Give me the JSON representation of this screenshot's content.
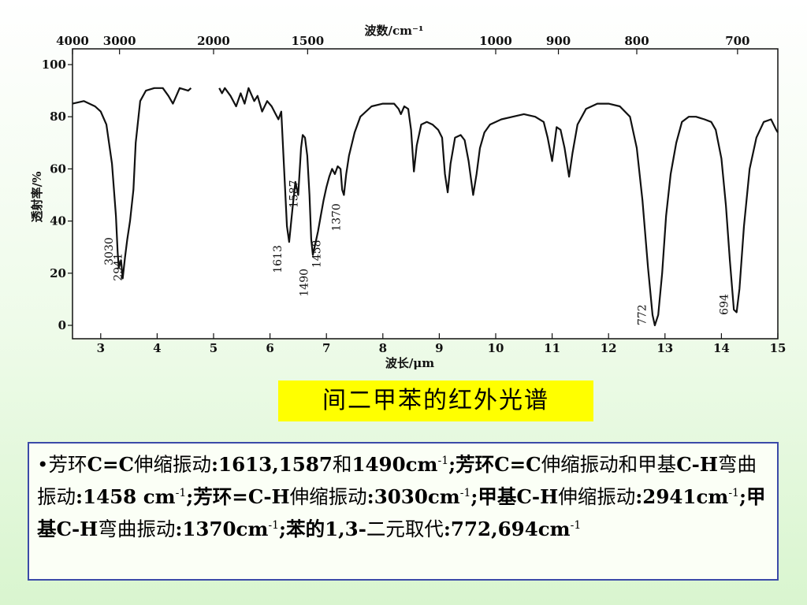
{
  "chart_data": {
    "type": "line",
    "title": "",
    "top_axis_label": "波数/cm⁻¹",
    "top_ticks": [
      4000,
      3000,
      2000,
      1500,
      1000,
      900,
      800,
      700
    ],
    "xlabel": "波长/μm",
    "x_ticks": [
      3,
      4,
      5,
      6,
      7,
      8,
      9,
      10,
      11,
      12,
      13,
      14,
      15
    ],
    "xlim": [
      2.5,
      15
    ],
    "ylabel": "透射率/%",
    "y_ticks": [
      0,
      20,
      40,
      60,
      80,
      100
    ],
    "ylim": [
      0,
      100
    ],
    "series": [
      {
        "segments": [
          [
            [
              2.5,
              85
            ],
            [
              2.7,
              86
            ],
            [
              2.9,
              84
            ],
            [
              3.0,
              82
            ],
            [
              3.1,
              77
            ],
            [
              3.2,
              62
            ],
            [
              3.27,
              42
            ],
            [
              3.3,
              28
            ],
            [
              3.32,
              22
            ],
            [
              3.36,
              25
            ],
            [
              3.39,
              18
            ],
            [
              3.43,
              26
            ],
            [
              3.47,
              33
            ],
            [
              3.52,
              40
            ],
            [
              3.58,
              52
            ],
            [
              3.62,
              70
            ],
            [
              3.7,
              86
            ],
            [
              3.8,
              90
            ],
            [
              3.95,
              91
            ],
            [
              4.1,
              91
            ],
            [
              4.2,
              88
            ],
            [
              4.28,
              85
            ],
            [
              4.34,
              88
            ],
            [
              4.4,
              91
            ],
            [
              4.55,
              90
            ],
            [
              4.6,
              91
            ]
          ],
          [
            [
              5.1,
              91
            ],
            [
              5.15,
              89
            ],
            [
              5.2,
              91
            ],
            [
              5.3,
              88
            ],
            [
              5.4,
              84
            ],
            [
              5.48,
              89
            ],
            [
              5.55,
              85
            ],
            [
              5.62,
              91
            ],
            [
              5.72,
              86
            ],
            [
              5.78,
              88
            ],
            [
              5.86,
              82
            ],
            [
              5.95,
              86
            ],
            [
              6.03,
              84
            ],
            [
              6.1,
              81
            ],
            [
              6.15,
              79
            ],
            [
              6.2,
              82
            ],
            [
              6.25,
              60
            ],
            [
              6.3,
              38
            ],
            [
              6.34,
              32
            ],
            [
              6.4,
              45
            ],
            [
              6.45,
              55
            ],
            [
              6.5,
              50
            ],
            [
              6.55,
              68
            ],
            [
              6.58,
              73
            ],
            [
              6.62,
              72
            ],
            [
              6.66,
              65
            ],
            [
              6.7,
              50
            ],
            [
              6.73,
              33
            ],
            [
              6.76,
              27
            ],
            [
              6.8,
              31
            ],
            [
              6.85,
              36
            ],
            [
              6.9,
              42
            ],
            [
              6.95,
              48
            ],
            [
              7.0,
              53
            ],
            [
              7.05,
              57
            ],
            [
              7.1,
              60
            ],
            [
              7.15,
              58
            ],
            [
              7.2,
              61
            ],
            [
              7.25,
              60
            ],
            [
              7.28,
              52
            ],
            [
              7.31,
              50
            ],
            [
              7.35,
              58
            ],
            [
              7.4,
              65
            ],
            [
              7.5,
              74
            ],
            [
              7.6,
              80
            ],
            [
              7.8,
              84
            ],
            [
              8.0,
              85
            ],
            [
              8.2,
              85
            ],
            [
              8.28,
              83
            ],
            [
              8.32,
              81
            ],
            [
              8.38,
              84
            ],
            [
              8.45,
              83
            ],
            [
              8.5,
              75
            ],
            [
              8.55,
              59
            ],
            [
              8.6,
              69
            ],
            [
              8.68,
              77
            ],
            [
              8.78,
              78
            ],
            [
              8.88,
              77
            ],
            [
              8.98,
              75
            ],
            [
              9.05,
              72
            ],
            [
              9.1,
              58
            ],
            [
              9.15,
              51
            ],
            [
              9.2,
              62
            ],
            [
              9.28,
              72
            ],
            [
              9.38,
              73
            ],
            [
              9.45,
              71
            ],
            [
              9.52,
              63
            ],
            [
              9.6,
              50
            ],
            [
              9.66,
              58
            ],
            [
              9.72,
              68
            ],
            [
              9.8,
              74
            ],
            [
              9.9,
              77
            ],
            [
              10.1,
              79
            ],
            [
              10.3,
              80
            ],
            [
              10.5,
              81
            ],
            [
              10.7,
              80
            ],
            [
              10.85,
              78
            ],
            [
              10.92,
              72
            ],
            [
              11.0,
              63
            ],
            [
              11.08,
              76
            ],
            [
              11.15,
              75
            ],
            [
              11.22,
              68
            ],
            [
              11.3,
              57
            ],
            [
              11.36,
              66
            ],
            [
              11.45,
              77
            ],
            [
              11.6,
              83
            ],
            [
              11.8,
              85
            ],
            [
              12.0,
              85
            ],
            [
              12.2,
              84
            ],
            [
              12.38,
              80
            ],
            [
              12.5,
              68
            ],
            [
              12.6,
              48
            ],
            [
              12.7,
              22
            ],
            [
              12.78,
              4
            ],
            [
              12.82,
              0
            ],
            [
              12.88,
              4
            ],
            [
              12.95,
              20
            ],
            [
              13.02,
              42
            ],
            [
              13.1,
              58
            ],
            [
              13.2,
              70
            ],
            [
              13.3,
              78
            ],
            [
              13.42,
              80
            ],
            [
              13.55,
              80
            ],
            [
              13.7,
              79
            ],
            [
              13.82,
              78
            ],
            [
              13.9,
              75
            ],
            [
              14.0,
              64
            ],
            [
              14.08,
              46
            ],
            [
              14.15,
              25
            ],
            [
              14.22,
              6
            ],
            [
              14.27,
              5
            ],
            [
              14.32,
              14
            ],
            [
              14.4,
              38
            ],
            [
              14.5,
              60
            ],
            [
              14.62,
              72
            ],
            [
              14.75,
              78
            ],
            [
              14.88,
              79
            ],
            [
              14.97,
              75
            ],
            [
              15.0,
              74
            ]
          ]
        ]
      }
    ],
    "peak_labels": [
      {
        "text": "3030",
        "x": 3.28,
        "y": 23
      },
      {
        "text": "2941",
        "x": 3.44,
        "y": 17
      },
      {
        "text": "1613",
        "x": 6.27,
        "y": 20
      },
      {
        "text": "1587",
        "x": 6.56,
        "y": 45
      },
      {
        "text": "1490",
        "x": 6.74,
        "y": 11
      },
      {
        "text": "1458",
        "x": 6.96,
        "y": 22
      },
      {
        "text": "1370",
        "x": 7.31,
        "y": 36
      },
      {
        "text": "772",
        "x": 12.73,
        "y": 0
      },
      {
        "text": "694",
        "x": 14.18,
        "y": 4
      }
    ]
  },
  "caption": "间二甲苯的红外光谱",
  "notes": {
    "bullet": "•",
    "p1": "芳环",
    "p2": "C=C",
    "p3": "伸缩振动",
    "p4": ":1613,1587",
    "p5": "和",
    "p6": "1490cm",
    "p7": ";芳环",
    "p8": "C=C",
    "p9": "伸缩振动和甲基",
    "p10": "C-H",
    "p11": "弯曲振动",
    "p12": ":1458 cm",
    "p13": ";芳环",
    "p14": "=C-H",
    "p15": "伸缩振动",
    "p16": ":3030cm",
    "p17": ";甲基",
    "p18": "C-H",
    "p19": "伸缩振动",
    "p20": ":2941cm",
    "p21": ";甲基",
    "p22": "C-H",
    "p23": "弯曲振动",
    "p24": ":1370cm",
    "p25": ";苯的",
    "p26": "1,3-",
    "p27": "二元取代",
    "p28": ":772,694cm",
    "sup": "-1"
  }
}
